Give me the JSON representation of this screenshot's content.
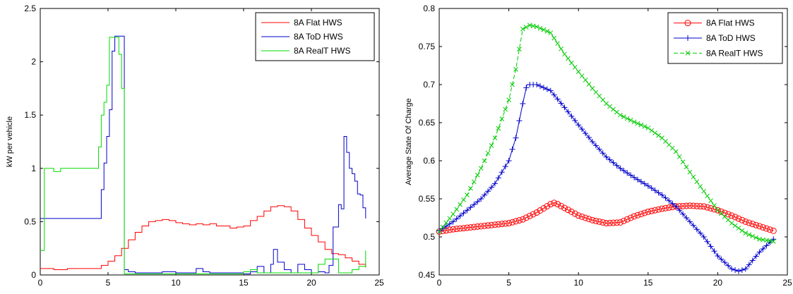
{
  "chart_data": [
    {
      "type": "line",
      "title": "",
      "xlabel": "",
      "ylabel": "kW per vehicle",
      "xlim": [
        0,
        25
      ],
      "ylim": [
        0,
        2.5
      ],
      "xticks": [
        "0",
        "5",
        "10",
        "15",
        "20",
        "25"
      ],
      "yticks": [
        "0",
        "0.5",
        "1",
        "1.5",
        "2",
        "2.5"
      ],
      "grid": false,
      "legend_position": "top-right",
      "series": [
        {
          "name": "8A Flat HWS",
          "color": "#ff0000",
          "step": true,
          "x": [
            0,
            1,
            2,
            3,
            4,
            4.5,
            5,
            5.5,
            6,
            6.5,
            7,
            7.5,
            8,
            8.5,
            9,
            9.5,
            10,
            10.5,
            11,
            11.5,
            12,
            12.5,
            13,
            13.5,
            14,
            14.5,
            15,
            15.5,
            16,
            16.5,
            17,
            17.5,
            18,
            18.5,
            19,
            19.5,
            20,
            20.5,
            21,
            21.5,
            22,
            22.5,
            23,
            23.5,
            24
          ],
          "y": [
            0.06,
            0.05,
            0.06,
            0.06,
            0.06,
            0.09,
            0.13,
            0.18,
            0.25,
            0.33,
            0.4,
            0.46,
            0.5,
            0.51,
            0.52,
            0.51,
            0.49,
            0.48,
            0.47,
            0.48,
            0.47,
            0.48,
            0.46,
            0.46,
            0.44,
            0.45,
            0.46,
            0.51,
            0.55,
            0.6,
            0.64,
            0.65,
            0.64,
            0.6,
            0.52,
            0.44,
            0.37,
            0.31,
            0.24,
            0.2,
            0.19,
            0.16,
            0.13,
            0.1,
            0.07
          ]
        },
        {
          "name": "8A ToD HWS",
          "color": "#0000cc",
          "step": true,
          "x": [
            0,
            4.3,
            4.5,
            4.7,
            4.9,
            5.1,
            5.3,
            5.5,
            5.7,
            6.0,
            6.2,
            6.5,
            7,
            8,
            9,
            10,
            11,
            11.5,
            12,
            12.5,
            13,
            14,
            15,
            15.5,
            16,
            16.5,
            17,
            17.2,
            17.5,
            18,
            18.5,
            19,
            19.5,
            20,
            20.5,
            21,
            21.3,
            21.6,
            22,
            22.2,
            22.4,
            22.6,
            22.8,
            23,
            23.2,
            23.4,
            23.6,
            23.8,
            24
          ],
          "y": [
            0.53,
            0.53,
            0.8,
            1.05,
            1.3,
            1.55,
            2.1,
            2.24,
            2.24,
            2.24,
            0.05,
            0.03,
            0.02,
            0.02,
            0.03,
            0.02,
            0.02,
            0.06,
            0.03,
            0.02,
            0.02,
            0.02,
            0.01,
            0.03,
            0.08,
            0.02,
            0.1,
            0.24,
            0.12,
            0.05,
            0.02,
            0.1,
            0.05,
            0.02,
            0.03,
            0.02,
            0.09,
            0.45,
            0.66,
            0.62,
            1.3,
            1.15,
            1.0,
            0.95,
            0.88,
            0.76,
            0.75,
            0.63,
            0.53
          ]
        },
        {
          "name": "8A RealT HWS",
          "color": "#00dd00",
          "step": true,
          "x": [
            0,
            0.3,
            1,
            1.5,
            4.3,
            4.5,
            4.7,
            4.9,
            5.1,
            5.6,
            5.8,
            6.0,
            6.2,
            14,
            15,
            15.5,
            16,
            20,
            20.5,
            21,
            22,
            22.5,
            23,
            23.5,
            24
          ],
          "y": [
            0.23,
            1.0,
            0.97,
            1.0,
            1.2,
            1.5,
            1.62,
            1.78,
            2.23,
            2.23,
            2.07,
            1.75,
            0.01,
            0.01,
            0.03,
            0.05,
            0.02,
            0.02,
            0.1,
            0.15,
            0.02,
            0.02,
            0.05,
            0.08,
            0.23
          ]
        }
      ]
    },
    {
      "type": "line",
      "title": "",
      "xlabel": "",
      "ylabel": "Average State Of Charge",
      "xlim": [
        0,
        25
      ],
      "ylim": [
        0.45,
        0.8
      ],
      "xticks": [
        "0",
        "5",
        "10",
        "15",
        "20",
        "25"
      ],
      "yticks": [
        "0.45",
        "0.5",
        "0.55",
        "0.6",
        "0.65",
        "0.7",
        "0.75",
        "0.8"
      ],
      "grid": false,
      "legend_position": "top-right",
      "series": [
        {
          "name": "8A Flat HWS",
          "color": "#ff0000",
          "marker": "circle",
          "x": [
            0,
            1,
            2,
            3,
            4,
            5,
            6,
            7,
            8,
            8.3,
            9,
            10,
            11,
            12,
            13,
            14,
            15,
            16,
            17,
            18,
            19,
            20,
            21,
            22,
            23,
            24
          ],
          "y": [
            0.507,
            0.51,
            0.512,
            0.514,
            0.516,
            0.518,
            0.523,
            0.532,
            0.543,
            0.545,
            0.538,
            0.528,
            0.522,
            0.518,
            0.519,
            0.527,
            0.533,
            0.537,
            0.54,
            0.541,
            0.54,
            0.535,
            0.528,
            0.52,
            0.514,
            0.508
          ]
        },
        {
          "name": "8A ToD HWS",
          "color": "#0000cc",
          "marker": "plus",
          "x": [
            0,
            1,
            2,
            3,
            4,
            5,
            5.5,
            6,
            6.3,
            7,
            8,
            9,
            10,
            11,
            12,
            13,
            14,
            15,
            16,
            17,
            18,
            19,
            20,
            21,
            21.5,
            22,
            23,
            24
          ],
          "y": [
            0.508,
            0.52,
            0.535,
            0.55,
            0.57,
            0.6,
            0.63,
            0.675,
            0.7,
            0.7,
            0.692,
            0.67,
            0.647,
            0.625,
            0.605,
            0.59,
            0.578,
            0.567,
            0.555,
            0.54,
            0.52,
            0.5,
            0.475,
            0.458,
            0.455,
            0.458,
            0.48,
            0.497
          ]
        },
        {
          "name": "8A RealT HWS",
          "color": "#00cc00",
          "marker": "x",
          "dashed": true,
          "x": [
            0,
            1,
            2,
            3,
            4,
            5,
            5.5,
            6,
            6.5,
            7,
            8,
            9,
            10,
            11,
            12,
            13,
            14,
            15,
            16,
            17,
            18,
            19,
            20,
            21,
            22,
            23,
            24
          ],
          "y": [
            0.507,
            0.53,
            0.555,
            0.59,
            0.63,
            0.68,
            0.72,
            0.773,
            0.778,
            0.776,
            0.768,
            0.74,
            0.717,
            0.695,
            0.675,
            0.66,
            0.651,
            0.643,
            0.63,
            0.612,
            0.585,
            0.56,
            0.535,
            0.518,
            0.505,
            0.497,
            0.494
          ]
        }
      ]
    }
  ]
}
